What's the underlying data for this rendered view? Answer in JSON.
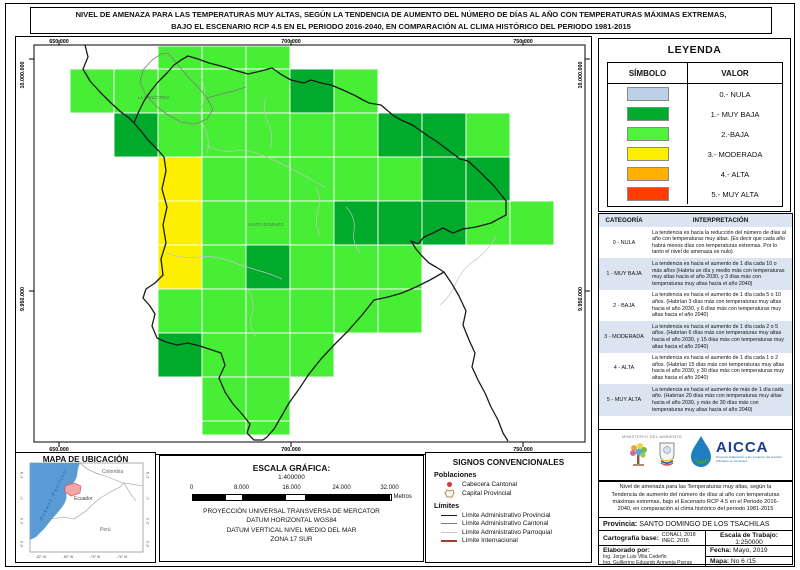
{
  "page": {
    "title_line1": "NIVEL DE AMENAZA PARA LAS TEMPERATURAS MUY ALTAS, SEGÚN LA TENDENCIA DE AUMENTO DEL NÚMERO DE DÍAS AL AÑO CON TEMPERATURAS MÁXIMAS EXTREMAS,",
    "title_line2": "BAJO EL ESCENARIO RCP 4.5 EN EL PERIODO 2016-2040, EN COMPARACIÓN AL CLIMA HISTÓRICO DEL PERIODO 1981-2015"
  },
  "map": {
    "x_ticks": [
      "650.000",
      "700.000",
      "750.000"
    ],
    "y_ticks": [
      "10.000.000",
      "9.950.000"
    ],
    "place_labels": {
      "la_concordia": "LA CONCORDIA",
      "santo_domingo": "SANTO DOMINGO"
    },
    "colors": {
      "b": "#47ee35",
      "m": "#00ab2c",
      "y": "#fcf000"
    },
    "levels": {
      "b": "2 - BAJA",
      "m": "1 - MUY BAJA",
      "y": "3 - MODERADA"
    },
    "cells": [
      [
        2,
        0,
        "b"
      ],
      [
        3,
        0,
        "b"
      ],
      [
        4,
        0,
        "b"
      ],
      [
        0,
        1,
        "b"
      ],
      [
        1,
        1,
        "b"
      ],
      [
        2,
        1,
        "b"
      ],
      [
        3,
        1,
        "b"
      ],
      [
        4,
        1,
        "b"
      ],
      [
        5,
        1,
        "m"
      ],
      [
        6,
        1,
        "b"
      ],
      [
        1,
        2,
        "m"
      ],
      [
        2,
        2,
        "b"
      ],
      [
        3,
        2,
        "b"
      ],
      [
        4,
        2,
        "b"
      ],
      [
        5,
        2,
        "b"
      ],
      [
        6,
        2,
        "b"
      ],
      [
        7,
        2,
        "m"
      ],
      [
        8,
        2,
        "m"
      ],
      [
        9,
        2,
        "b"
      ],
      [
        2,
        3,
        "y"
      ],
      [
        3,
        3,
        "b"
      ],
      [
        4,
        3,
        "b"
      ],
      [
        5,
        3,
        "b"
      ],
      [
        6,
        3,
        "b"
      ],
      [
        7,
        3,
        "b"
      ],
      [
        8,
        3,
        "m"
      ],
      [
        9,
        3,
        "m"
      ],
      [
        2,
        4,
        "y"
      ],
      [
        3,
        4,
        "b"
      ],
      [
        4,
        4,
        "b"
      ],
      [
        5,
        4,
        "b"
      ],
      [
        6,
        4,
        "m"
      ],
      [
        7,
        4,
        "m"
      ],
      [
        8,
        4,
        "m"
      ],
      [
        9,
        4,
        "b"
      ],
      [
        10,
        4,
        "b"
      ],
      [
        2,
        5,
        "y"
      ],
      [
        3,
        5,
        "b"
      ],
      [
        4,
        5,
        "m"
      ],
      [
        5,
        5,
        "b"
      ],
      [
        6,
        5,
        "b"
      ],
      [
        7,
        5,
        "b"
      ],
      [
        2,
        6,
        "b"
      ],
      [
        3,
        6,
        "b"
      ],
      [
        4,
        6,
        "b"
      ],
      [
        5,
        6,
        "b"
      ],
      [
        6,
        6,
        "b"
      ],
      [
        7,
        6,
        "b"
      ],
      [
        2,
        7,
        "m"
      ],
      [
        3,
        7,
        "b"
      ],
      [
        4,
        7,
        "b"
      ],
      [
        5,
        7,
        "b"
      ],
      [
        3,
        8,
        "b"
      ],
      [
        4,
        8,
        "b"
      ],
      [
        3,
        9,
        "b"
      ],
      [
        4,
        9,
        "b"
      ]
    ]
  },
  "legend": {
    "title": "LEYENDA",
    "col_symbol": "SÍMBOLO",
    "col_value": "VALOR",
    "rows": [
      {
        "label": "0.- NULA",
        "color": "#bcd1e8"
      },
      {
        "label": "1.- MUY BAJA",
        "color": "#00ab2c"
      },
      {
        "label": "2.-BAJA",
        "color": "#52f13e"
      },
      {
        "label": "3.- MODERADA",
        "color": "#fcf000"
      },
      {
        "label": "4.- ALTA",
        "color": "#ffb100"
      },
      {
        "label": "5.- MUY ALTA",
        "color": "#ff3c00"
      }
    ]
  },
  "interpretation": {
    "header_category": "CATEGORÍA",
    "header_interpretation": "INTERPRETACIÓN",
    "rows": [
      {
        "category": "0 - NULA",
        "text": "La tendencia es hacia la reducción del número de días al año con temperaturas muy altas. (Es decir que cada año habrá menos días con temperaturas extremas. Por lo tanto el nivel de amenaza es nulo)"
      },
      {
        "category": "1 - MUY BAJA",
        "text": "La tendencia es hacia el aumento de 1 día cada 10 o más años (Habría un día y medio más con temperaturas muy altas hacia el año 2030, y 3 días más con temperaturas muy altas hacia el año 2040)"
      },
      {
        "category": "2 - BAJA",
        "text": "La tendencia es hacia el aumento de 1 día cada 5 o 10 años. (Habrían 3 días más con temperaturas muy altas hacia el año 2030, y 6 días más con temperaturas muy altas hacia el año 2040)"
      },
      {
        "category": "3 - MODERADA",
        "text": "La tendencia es hacia el aumento de 1 día cada 2 o 5 años. (Habrían 6 días más con temperaturas muy altas hacia el año 2030, y 15 días más con temperaturas muy altas hacia el año 2040)"
      },
      {
        "category": "4 - ALTA",
        "text": "La tendencia es hacia el aumento de 1 día cada 1 o 2 años. (Habrían 15 días más con temperaturas muy altas hacia el año 2030, y 30 días más con temperaturas muy altas hacia el año 2040)"
      },
      {
        "category": "5 - MUY ALTA",
        "text": "La tendencia es hacia el aumento de más de 1 día cada año. (Habrían 20 días más con temperaturas muy altas hacia el año 2030, y más de 30 días más con temperaturas muy altas hacia el año 2040)"
      }
    ]
  },
  "location_map": {
    "title": "MAPA DE UBICACIÓN",
    "labels": {
      "colombia": "Colombia",
      "ecuador": "Ecuador",
      "peru": "Perú",
      "ocean": "Océano Pacífico"
    },
    "lon_ticks": [
      "-82° W",
      "-80° W",
      "-78° W",
      "-76° W"
    ],
    "lat_ticks": [
      "2° N",
      "0°",
      "2° S",
      "4° S"
    ],
    "ocean_color": "#5b9bd5",
    "highlight_color": "#f2a7a7"
  },
  "scale": {
    "title": "ESCALA GRÁFICA:",
    "ratio": "1:400000",
    "bar_labels": [
      "0",
      "8.000",
      "16.000",
      "24.000",
      "32.000"
    ],
    "unit": "Metros",
    "projection_lines": [
      "PROYECCIÓN UNIVERSAL TRANSVERSA DE MERCATOR",
      "DATUM HORIZONTAL WGS84",
      "DATUM VERTICAL NIVEL MEDIO DEL MAR",
      "ZONA 17 SUR"
    ]
  },
  "signs": {
    "title": "SIGNOS CONVENCIONALES",
    "poblaciones_title": "Poblaciones",
    "poblaciones": [
      {
        "label": "Cabecera Cantonal",
        "color": "#e03131"
      },
      {
        "label": "Capital Provincial",
        "color": "#b08a63"
      }
    ],
    "limites_title": "Límites",
    "limites": [
      {
        "label": "Límite Administrativo Provincial",
        "color": "#1a1a1a"
      },
      {
        "label": "Límite Administrativo Cantonal",
        "color": "#7d7d7d"
      },
      {
        "label": "Límite Administrativo Parroquial",
        "color": "#c2c2c2"
      },
      {
        "label": "Límite Internacional",
        "color": "#9e3c35"
      }
    ]
  },
  "logos": {
    "ministry_text": "MINISTERIO DEL AMBIENTE",
    "aicca_text": "AICCA",
    "aicca_tagline": "Proyecto Adaptación a los Impactos del Cambio Climático en los Andes"
  },
  "credits": {
    "description": "Nivel de amenaza para las Temperaturas muy altas, según la Tendencia de aumento del número de días al año con temperaturas máximas extremas, bajo el Escenario RCP 4.5 en el Periodo 2016-2040, en comparación al clima histórico del periodo 1981-2015",
    "provincia_label": "Provincia:",
    "provincia_value": "SANTO DOMINGO DE LOS TSACHILAS",
    "cartografia_label": "Cartografía base:",
    "cartografia_lines": [
      "CONALI, 2018",
      "INEC, 2016"
    ],
    "escala_label": "Escala de Trabajo:",
    "escala_value": "1:250000",
    "elaborado_label": "Elaborado por:",
    "elaborado_names": [
      "Ing. Jorge Luis Villa Cedeño",
      "Ing. Guillermo Eduardo Armenta Porras"
    ],
    "fecha_label": "Fecha:",
    "fecha_value": "Mayo, 2019",
    "mapa_label": "Mapa:",
    "mapa_value": "No 6 /15"
  }
}
